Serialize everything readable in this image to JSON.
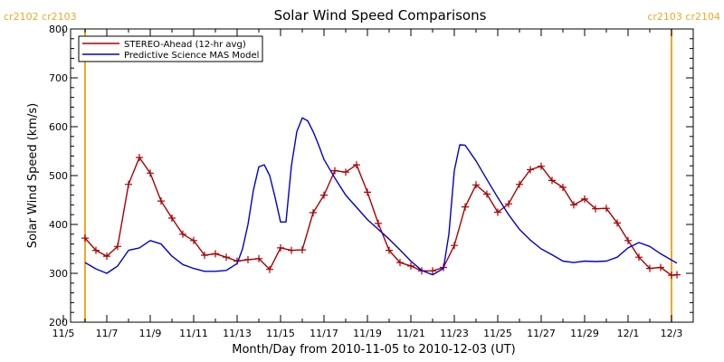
{
  "chart_data": {
    "type": "line",
    "title": "Solar Wind Speed Comparisons",
    "xlabel": "Month/Day from 2010-11-05 to 2010-12-03 (UT)",
    "ylabel": "Solar Wind Speed (km/s)",
    "xlim": [
      "2010-11-05",
      "2010-12-03"
    ],
    "ylim": [
      200,
      800
    ],
    "yticks": [
      200,
      300,
      400,
      500,
      600,
      700,
      800
    ],
    "xticks": [
      {
        "date": "2010-11-05",
        "label": "11/5"
      },
      {
        "date": "2010-11-07",
        "label": "11/7"
      },
      {
        "date": "2010-11-09",
        "label": "11/9"
      },
      {
        "date": "2010-11-11",
        "label": "11/11"
      },
      {
        "date": "2010-11-13",
        "label": "11/13"
      },
      {
        "date": "2010-11-15",
        "label": "11/15"
      },
      {
        "date": "2010-11-17",
        "label": "11/17"
      },
      {
        "date": "2010-11-19",
        "label": "11/19"
      },
      {
        "date": "2010-11-21",
        "label": "11/21"
      },
      {
        "date": "2010-11-23",
        "label": "11/23"
      },
      {
        "date": "2010-11-25",
        "label": "11/25"
      },
      {
        "date": "2010-11-27",
        "label": "11/27"
      },
      {
        "date": "2010-11-29",
        "label": "11/29"
      },
      {
        "date": "2010-12-01",
        "label": "12/1"
      },
      {
        "date": "2010-12-03",
        "label": "12/3"
      }
    ],
    "grid": false,
    "legend": "top-left",
    "annotations": [
      {
        "date": "2010-11-06 00:00",
        "labels": [
          "cr2102",
          "cr2103"
        ],
        "color": "#f5a623"
      },
      {
        "date": "2010-12-03 00:00",
        "labels": [
          "cr2103",
          "cr2104"
        ],
        "color": "#f5a623"
      }
    ],
    "series": [
      {
        "name": "STEREO-Ahead (12-hr avg)",
        "color": "#aa0000",
        "marker": "plus",
        "points": [
          [
            "2010-11-06 00:00",
            372
          ],
          [
            "2010-11-06 12:00",
            347
          ],
          [
            "2010-11-07 00:00",
            335
          ],
          [
            "2010-11-07 12:00",
            355
          ],
          [
            "2010-11-08 00:00",
            482
          ],
          [
            "2010-11-08 12:00",
            537
          ],
          [
            "2010-11-09 00:00",
            505
          ],
          [
            "2010-11-09 12:00",
            448
          ],
          [
            "2010-11-10 00:00",
            413
          ],
          [
            "2010-11-10 12:00",
            380
          ],
          [
            "2010-11-11 00:00",
            367
          ],
          [
            "2010-11-11 12:00",
            337
          ],
          [
            "2010-11-12 00:00",
            340
          ],
          [
            "2010-11-12 12:00",
            333
          ],
          [
            "2010-11-13 00:00",
            325
          ],
          [
            "2010-11-13 12:00",
            328
          ],
          [
            "2010-11-14 00:00",
            330
          ],
          [
            "2010-11-14 12:00",
            308
          ],
          [
            "2010-11-15 00:00",
            352
          ],
          [
            "2010-11-15 12:00",
            347
          ],
          [
            "2010-11-16 00:00",
            348
          ],
          [
            "2010-11-16 12:00",
            424
          ],
          [
            "2010-11-17 00:00",
            460
          ],
          [
            "2010-11-17 12:00",
            510
          ],
          [
            "2010-11-18 00:00",
            507
          ],
          [
            "2010-11-18 12:00",
            522
          ],
          [
            "2010-11-19 00:00",
            466
          ],
          [
            "2010-11-19 12:00",
            402
          ],
          [
            "2010-11-20 00:00",
            347
          ],
          [
            "2010-11-20 12:00",
            322
          ],
          [
            "2010-11-21 00:00",
            315
          ],
          [
            "2010-11-21 12:00",
            305
          ],
          [
            "2010-11-22 00:00",
            305
          ],
          [
            "2010-11-22 12:00",
            312
          ],
          [
            "2010-11-23 00:00",
            357
          ],
          [
            "2010-11-23 12:00",
            436
          ],
          [
            "2010-11-24 00:00",
            481
          ],
          [
            "2010-11-24 12:00",
            462
          ],
          [
            "2010-11-25 00:00",
            425
          ],
          [
            "2010-11-25 12:00",
            442
          ],
          [
            "2010-11-26 00:00",
            482
          ],
          [
            "2010-11-26 12:00",
            512
          ],
          [
            "2010-11-27 00:00",
            519
          ],
          [
            "2010-11-27 12:00",
            490
          ],
          [
            "2010-11-28 00:00",
            476
          ],
          [
            "2010-11-28 12:00",
            440
          ],
          [
            "2010-11-29 00:00",
            452
          ],
          [
            "2010-11-29 12:00",
            432
          ],
          [
            "2010-11-30 00:00",
            433
          ],
          [
            "2010-11-30 12:00",
            403
          ],
          [
            "2010-12-01 00:00",
            367
          ],
          [
            "2010-12-01 12:00",
            333
          ],
          [
            "2010-12-02 00:00",
            310
          ],
          [
            "2010-12-02 12:00",
            312
          ],
          [
            "2010-12-03 00:00",
            296
          ],
          [
            "2010-12-03 06:00",
            297
          ]
        ]
      },
      {
        "name": "Predictive Science MAS Model",
        "color": "#0000cc",
        "marker": "none",
        "points": [
          [
            "2010-11-06 00:00",
            322
          ],
          [
            "2010-11-06 12:00",
            309
          ],
          [
            "2010-11-07 00:00",
            300
          ],
          [
            "2010-11-07 12:00",
            315
          ],
          [
            "2010-11-08 00:00",
            347
          ],
          [
            "2010-11-08 12:00",
            352
          ],
          [
            "2010-11-09 00:00",
            367
          ],
          [
            "2010-11-09 12:00",
            360
          ],
          [
            "2010-11-10 00:00",
            335
          ],
          [
            "2010-11-10 12:00",
            318
          ],
          [
            "2010-11-11 00:00",
            310
          ],
          [
            "2010-11-11 12:00",
            304
          ],
          [
            "2010-11-12 00:00",
            304
          ],
          [
            "2010-11-12 12:00",
            306
          ],
          [
            "2010-11-13 00:00",
            320
          ],
          [
            "2010-11-13 06:00",
            350
          ],
          [
            "2010-11-13 12:00",
            400
          ],
          [
            "2010-11-13 18:00",
            470
          ],
          [
            "2010-11-14 00:00",
            518
          ],
          [
            "2010-11-14 06:00",
            522
          ],
          [
            "2010-11-14 12:00",
            500
          ],
          [
            "2010-11-14 18:00",
            455
          ],
          [
            "2010-11-15 00:00",
            405
          ],
          [
            "2010-11-15 06:00",
            405
          ],
          [
            "2010-11-15 12:00",
            520
          ],
          [
            "2010-11-15 18:00",
            590
          ],
          [
            "2010-11-16 00:00",
            618
          ],
          [
            "2010-11-16 06:00",
            612
          ],
          [
            "2010-11-16 12:00",
            590
          ],
          [
            "2010-11-16 18:00",
            563
          ],
          [
            "2010-11-17 00:00",
            533
          ],
          [
            "2010-11-17 12:00",
            495
          ],
          [
            "2010-11-18 00:00",
            460
          ],
          [
            "2010-11-18 12:00",
            435
          ],
          [
            "2010-11-19 00:00",
            410
          ],
          [
            "2010-11-19 12:00",
            390
          ],
          [
            "2010-11-20 00:00",
            370
          ],
          [
            "2010-11-20 12:00",
            348
          ],
          [
            "2010-11-21 00:00",
            325
          ],
          [
            "2010-11-21 12:00",
            306
          ],
          [
            "2010-11-22 00:00",
            297
          ],
          [
            "2010-11-22 12:00",
            310
          ],
          [
            "2010-11-22 18:00",
            380
          ],
          [
            "2010-11-23 00:00",
            510
          ],
          [
            "2010-11-23 06:00",
            563
          ],
          [
            "2010-11-23 12:00",
            562
          ],
          [
            "2010-11-24 00:00",
            530
          ],
          [
            "2010-11-24 12:00",
            492
          ],
          [
            "2010-11-25 00:00",
            455
          ],
          [
            "2010-11-25 12:00",
            420
          ],
          [
            "2010-11-26 00:00",
            390
          ],
          [
            "2010-11-26 12:00",
            368
          ],
          [
            "2010-11-27 00:00",
            350
          ],
          [
            "2010-11-27 12:00",
            338
          ],
          [
            "2010-11-28 00:00",
            325
          ],
          [
            "2010-11-28 12:00",
            322
          ],
          [
            "2010-11-29 00:00",
            325
          ],
          [
            "2010-11-29 12:00",
            324
          ],
          [
            "2010-11-30 00:00",
            325
          ],
          [
            "2010-11-30 12:00",
            333
          ],
          [
            "2010-12-01 00:00",
            352
          ],
          [
            "2010-12-01 12:00",
            363
          ],
          [
            "2010-12-02 00:00",
            355
          ],
          [
            "2010-12-02 12:00",
            340
          ],
          [
            "2010-12-03 00:00",
            327
          ],
          [
            "2010-12-03 06:00",
            321
          ]
        ]
      }
    ]
  }
}
